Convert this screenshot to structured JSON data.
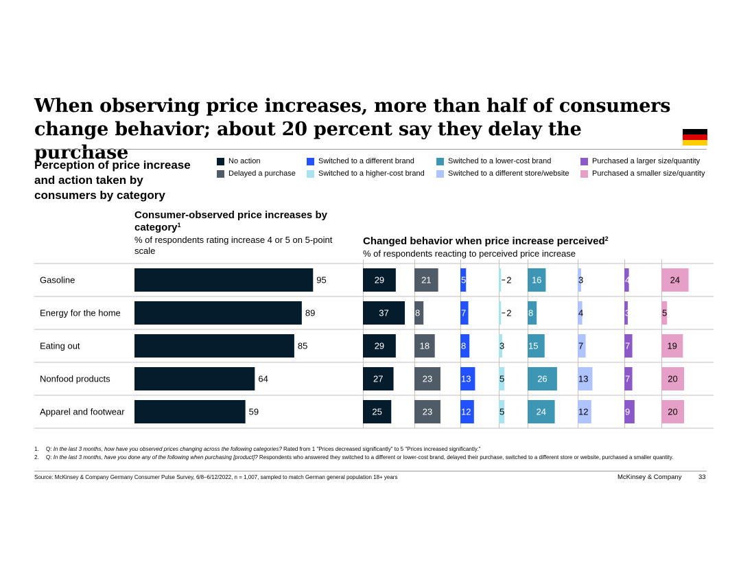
{
  "title": "When observing price increases, more than half of consumers change behavior; about 20 percent say they delay the purchase",
  "flag": {
    "name": "Germany",
    "colors": [
      "#000000",
      "#dd0000",
      "#ffce00"
    ]
  },
  "subtitle": "Perception of price increase and action taken by consumers by category",
  "left_heading": {
    "title": "Consumer-observed price increases by category",
    "footnote_ref": "1",
    "subtitle": "% of respondents rating increase 4 or 5 on 5-point scale"
  },
  "right_heading": {
    "title": "Changed behavior when price increase perceived",
    "footnote_ref": "2",
    "subtitle": "% of respondents reacting to perceived price increase"
  },
  "chart_data": [
    {
      "type": "bar",
      "orientation": "horizontal",
      "title": "Consumer-observed price increases by category",
      "categories": [
        "Gasoline",
        "Energy for the home",
        "Eating out",
        "Nonfood products",
        "Apparel and footwear"
      ],
      "values": [
        95,
        89,
        85,
        64,
        59
      ],
      "color": "#051c2c",
      "xlim": [
        0,
        100
      ]
    },
    {
      "type": "bar",
      "orientation": "horizontal",
      "layout": "small-multiples",
      "title": "Changed behavior when price increase perceived",
      "categories": [
        "Gasoline",
        "Energy for the home",
        "Eating out",
        "Nonfood products",
        "Apparel and footwear"
      ],
      "series": [
        {
          "name": "No action",
          "color": "#051c2c",
          "label_color": "#ffffff",
          "values": [
            29,
            37,
            29,
            27,
            25
          ]
        },
        {
          "name": "Delayed a purchase",
          "color": "#4f5b66",
          "label_color": "#ffffff",
          "values": [
            21,
            8,
            18,
            23,
            23
          ]
        },
        {
          "name": "Switched to a different brand",
          "color": "#2251ff",
          "label_color": "#ffffff",
          "values": [
            5,
            7,
            8,
            13,
            12
          ]
        },
        {
          "name": "Switched to a higher-cost brand",
          "color": "#a9e3f0",
          "label_color": "#000000",
          "values": [
            2,
            2,
            3,
            5,
            5
          ]
        },
        {
          "name": "Switched to a lower-cost brand",
          "color": "#3c96b4",
          "label_color": "#ffffff",
          "values": [
            16,
            8,
            15,
            26,
            24
          ]
        },
        {
          "name": "Switched to a different store/website",
          "color": "#afc3ff",
          "label_color": "#000000",
          "values": [
            3,
            4,
            7,
            13,
            12
          ]
        },
        {
          "name": "Purchased a larger size/quantity",
          "color": "#8c5ac8",
          "label_color": "#ffffff",
          "values": [
            4,
            3,
            7,
            7,
            9
          ]
        },
        {
          "name": "Purchased a smaller size/quantity",
          "color": "#e6a0c8",
          "label_color": "#000000",
          "values": [
            24,
            5,
            19,
            20,
            20
          ]
        }
      ]
    }
  ],
  "footnotes": [
    {
      "num": "1.",
      "q_label": "Q:",
      "question": "In the last 3 months, how have you observed prices changing across the following categories?",
      "rest": " Rated from 1 \"Prices decreased significantly\" to 5 \"Prices increased significantly.\""
    },
    {
      "num": "2.",
      "q_label": "Q:",
      "question": "In the last 3 months, have you done any of the following when purchasing [product]?",
      "rest": " Respondents who answered they switched to a different or lower-cost brand, delayed their purchase, switched to a different store or website, purchased a smaller quantity."
    }
  ],
  "source": "Source: McKinsey & Company Germany Consumer Pulse Survey, 6/8–6/12/2022, n = 1,007, sampled to match German general population 18+ years",
  "brand": "McKinsey & Company",
  "page_number": "33"
}
